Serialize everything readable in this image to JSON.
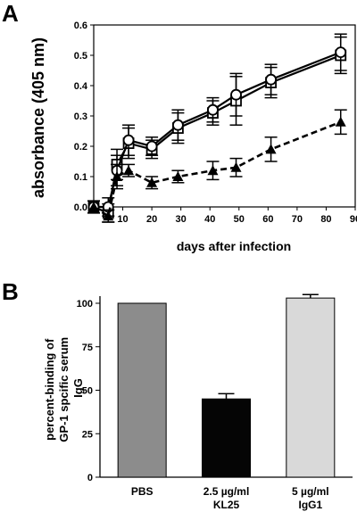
{
  "colors": {
    "pbs": "#8c8c8c",
    "kl25": "#050505",
    "igg1": "#d9d9d9",
    "ink": "#000000"
  },
  "chart_data": [
    {
      "panel": "A",
      "type": "line",
      "xlabel": "days after infection",
      "ylabel": "absorbance (405 nm)",
      "xlim": [
        0,
        90
      ],
      "ylim": [
        0,
        0.6
      ],
      "xticks": [
        10,
        20,
        30,
        40,
        50,
        60,
        70,
        80,
        90
      ],
      "yticks": [
        0.0,
        0.1,
        0.2,
        0.3,
        0.4,
        0.5,
        0.6
      ],
      "series": [
        {
          "marker": "square-open",
          "line": "solid",
          "x": [
            0,
            5,
            8,
            12,
            20,
            29,
            41,
            49,
            61,
            85
          ],
          "y": [
            0.0,
            -0.02,
            0.14,
            0.21,
            0.19,
            0.26,
            0.31,
            0.35,
            0.41,
            0.5
          ],
          "err": [
            0.02,
            0.03,
            0.05,
            0.05,
            0.03,
            0.05,
            0.04,
            0.08,
            0.05,
            0.06
          ]
        },
        {
          "marker": "circle-open",
          "line": "solid",
          "x": [
            0,
            5,
            8,
            12,
            20,
            29,
            41,
            49,
            61,
            85
          ],
          "y": [
            0.0,
            0.0,
            0.12,
            0.22,
            0.2,
            0.27,
            0.32,
            0.37,
            0.42,
            0.51
          ],
          "err": [
            0.02,
            0.03,
            0.05,
            0.05,
            0.03,
            0.05,
            0.04,
            0.07,
            0.05,
            0.06
          ]
        },
        {
          "marker": "triangle-filled",
          "line": "dashed",
          "x": [
            0,
            5,
            8,
            12,
            20,
            29,
            41,
            49,
            61,
            85
          ],
          "y": [
            0.0,
            -0.03,
            0.1,
            0.12,
            0.08,
            0.1,
            0.12,
            0.13,
            0.19,
            0.28
          ],
          "err": [
            0.02,
            0.02,
            0.04,
            0.02,
            0.02,
            0.02,
            0.03,
            0.03,
            0.04,
            0.04
          ]
        }
      ]
    },
    {
      "panel": "B",
      "type": "bar",
      "ylabel": "percent-binding of GP-1 spcific serum IgG",
      "ylabel_lines": [
        "percent-binding of",
        "GP-1 spcific serum",
        "IgG"
      ],
      "ylim": [
        0,
        100
      ],
      "yticks": [
        0,
        25,
        50,
        75,
        100
      ],
      "categories": [
        {
          "lines": [
            "PBS"
          ],
          "value": 100,
          "err": 0,
          "color": "pbs"
        },
        {
          "lines": [
            "2.5 µg/ml",
            "KL25"
          ],
          "value": 45,
          "err": 3,
          "color": "kl25"
        },
        {
          "lines": [
            "5 µg/ml",
            "IgG1"
          ],
          "value": 103,
          "err": 2,
          "color": "igg1"
        }
      ]
    }
  ]
}
